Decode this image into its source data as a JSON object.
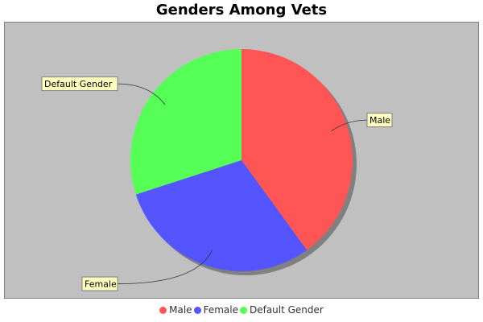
{
  "chart_data": {
    "type": "pie",
    "title": "Genders Among Vets",
    "categories": [
      "Male",
      "Female",
      "Default Gender"
    ],
    "values": [
      40,
      30,
      30
    ],
    "colors": [
      "#ff5555",
      "#5555ff",
      "#55ff55"
    ],
    "plot_background": "#c0c0c0",
    "label_background": "#ffffc0",
    "legend": "bottom"
  }
}
